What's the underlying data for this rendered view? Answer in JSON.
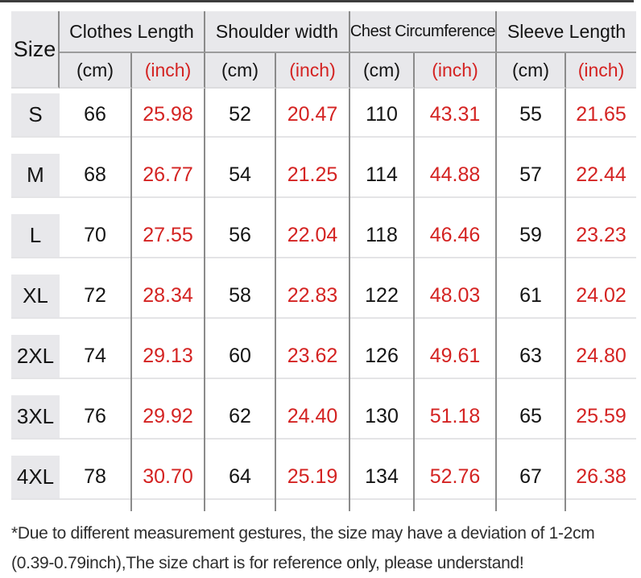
{
  "table": {
    "size_header": "Size",
    "groups": [
      {
        "label": "Clothes Length"
      },
      {
        "label": "Shoulder width"
      },
      {
        "label": "Chest Circumference"
      },
      {
        "label": "Sleeve Length"
      }
    ],
    "unit_cm": "(cm)",
    "unit_inch": "(inch)",
    "rows": [
      {
        "size": "S",
        "values": [
          "66",
          "25.98",
          "52",
          "20.47",
          "110",
          "43.31",
          "55",
          "21.65"
        ]
      },
      {
        "size": "M",
        "values": [
          "68",
          "26.77",
          "54",
          "21.25",
          "114",
          "44.88",
          "57",
          "22.44"
        ]
      },
      {
        "size": "L",
        "values": [
          "70",
          "27.55",
          "56",
          "22.04",
          "118",
          "46.46",
          "59",
          "23.23"
        ]
      },
      {
        "size": "XL",
        "values": [
          "72",
          "28.34",
          "58",
          "22.83",
          "122",
          "48.03",
          "61",
          "24.02"
        ]
      },
      {
        "size": "2XL",
        "values": [
          "74",
          "29.13",
          "60",
          "23.62",
          "126",
          "49.61",
          "63",
          "24.80"
        ]
      },
      {
        "size": "3XL",
        "values": [
          "76",
          "29.92",
          "62",
          "24.40",
          "130",
          "51.18",
          "65",
          "25.59"
        ]
      },
      {
        "size": "4XL",
        "values": [
          "78",
          "30.70",
          "64",
          "25.19",
          "134",
          "52.76",
          "67",
          "26.38"
        ]
      }
    ]
  },
  "footnote": {
    "line1": "*Due to different measurement gestures, the size may have a deviation of 1-2cm",
    "line2": "(0.39-0.79inch),The size chart is for reference only, please understand!"
  },
  "colors": {
    "accent_red": "#d42322",
    "header_bg": "#e8e8eb",
    "divider_gray": "#8b8b8b",
    "row_border": "#e4e4e6"
  },
  "chart_data": {
    "type": "table",
    "columns": [
      "Size",
      "Clothes Length (cm)",
      "Clothes Length (inch)",
      "Shoulder width (cm)",
      "Shoulder width (inch)",
      "Chest Circumference (cm)",
      "Chest Circumference (inch)",
      "Sleeve Length (cm)",
      "Sleeve Length (inch)"
    ],
    "rows": [
      [
        "S",
        66,
        25.98,
        52,
        20.47,
        110,
        43.31,
        55,
        21.65
      ],
      [
        "M",
        68,
        26.77,
        54,
        21.25,
        114,
        44.88,
        57,
        22.44
      ],
      [
        "L",
        70,
        27.55,
        56,
        22.04,
        118,
        46.46,
        59,
        23.23
      ],
      [
        "XL",
        72,
        28.34,
        58,
        22.83,
        122,
        48.03,
        61,
        24.02
      ],
      [
        "2XL",
        74,
        29.13,
        60,
        23.62,
        126,
        49.61,
        63,
        24.8
      ],
      [
        "3XL",
        76,
        29.92,
        62,
        24.4,
        130,
        51.18,
        65,
        25.59
      ],
      [
        "4XL",
        78,
        30.7,
        64,
        25.19,
        134,
        52.76,
        67,
        26.38
      ]
    ],
    "annotations": [
      "*Due to different measurement gestures, the size may have a deviation of 1-2cm",
      "(0.39-0.79inch),The size chart is for reference only, please understand!"
    ]
  }
}
